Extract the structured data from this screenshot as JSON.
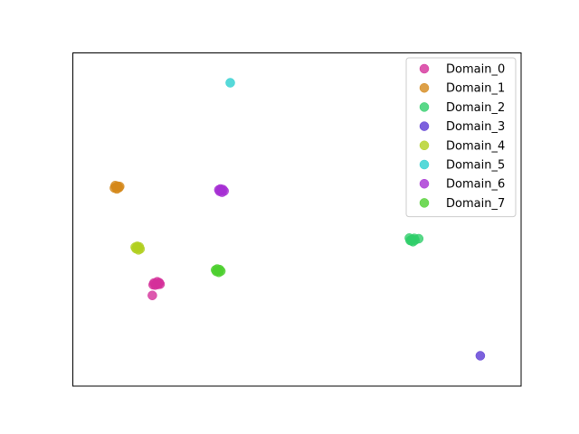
{
  "chart_data": {
    "type": "scatter",
    "title": "",
    "xlabel": "",
    "ylabel": "",
    "xlim": [
      0,
      100
    ],
    "ylim": [
      0,
      100
    ],
    "ticks_visible": false,
    "grid": false,
    "legend_position": "top-right",
    "series": [
      {
        "name": "Domain_0",
        "color": "#d4309a",
        "points": [
          [
            15.5,
            28.7
          ],
          [
            15.0,
            29.0
          ],
          [
            16.0,
            28.5
          ],
          [
            15.3,
            28.3
          ],
          [
            16.3,
            29.1
          ],
          [
            15.8,
            29.4
          ],
          [
            14.8,
            28.4
          ],
          [
            16.5,
            28.6
          ],
          [
            14.6,
            24.9
          ]
        ]
      },
      {
        "name": "Domain_1",
        "color": "#d4881a",
        "points": [
          [
            5.7,
            60.6
          ],
          [
            6.1,
            60.9
          ],
          [
            5.3,
            60.3
          ],
          [
            6.4,
            60.4
          ],
          [
            5.5,
            61.1
          ],
          [
            5.9,
            60.0
          ],
          [
            6.6,
            60.8
          ]
        ]
      },
      {
        "name": "Domain_2",
        "color": "#2fce6a",
        "points": [
          [
            78.3,
            43.4
          ],
          [
            78.8,
            43.7
          ],
          [
            77.8,
            43.0
          ],
          [
            79.0,
            43.1
          ],
          [
            78.5,
            42.6
          ],
          [
            79.9,
            43.6
          ],
          [
            77.6,
            43.8
          ],
          [
            78.1,
            42.9
          ]
        ]
      },
      {
        "name": "Domain_3",
        "color": "#5b3ad4",
        "points": [
          [
            95.0,
            5.0
          ]
        ]
      },
      {
        "name": "Domain_4",
        "color": "#b1cf20",
        "points": [
          [
            11.0,
            40.6
          ],
          [
            11.4,
            40.9
          ],
          [
            10.6,
            40.3
          ],
          [
            11.6,
            40.2
          ],
          [
            10.9,
            41.1
          ],
          [
            11.2,
            39.9
          ],
          [
            10.4,
            40.8
          ]
        ]
      },
      {
        "name": "Domain_5",
        "color": "#2ccfd0",
        "points": [
          [
            33.7,
            95.0
          ]
        ]
      },
      {
        "name": "Domain_6",
        "color": "#a62fd3",
        "points": [
          [
            31.5,
            59.5
          ],
          [
            31.9,
            59.8
          ],
          [
            31.1,
            59.2
          ],
          [
            32.2,
            59.3
          ],
          [
            31.3,
            60.0
          ],
          [
            31.7,
            58.9
          ],
          [
            30.9,
            59.7
          ]
        ]
      },
      {
        "name": "Domain_7",
        "color": "#4ecf2f",
        "points": [
          [
            30.7,
            33.1
          ],
          [
            31.1,
            33.4
          ],
          [
            30.3,
            32.8
          ],
          [
            31.4,
            32.9
          ],
          [
            30.5,
            33.6
          ],
          [
            30.9,
            32.5
          ],
          [
            30.1,
            33.3
          ]
        ]
      }
    ]
  }
}
